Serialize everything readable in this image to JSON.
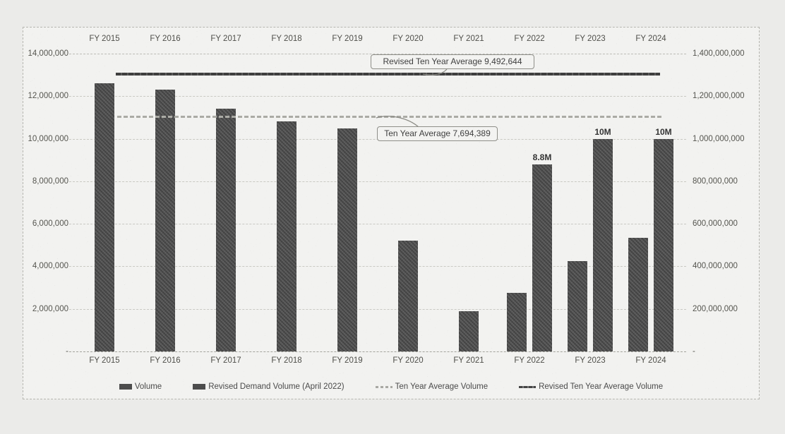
{
  "chart_data": {
    "type": "bar",
    "title": "",
    "categories": [
      "FY 2015",
      "FY 2016",
      "FY 2017",
      "FY 2018",
      "FY 2019",
      "FY 2020",
      "FY 2021",
      "FY 2022",
      "FY 2023",
      "FY 2024"
    ],
    "series": [
      {
        "name": "Volume",
        "values": [
          12600000,
          12300000,
          11400000,
          10800000,
          10500000,
          5200000,
          1900000,
          2750000,
          4250000,
          5350000
        ]
      },
      {
        "name": "Revised Demand Volume (April 2022)",
        "values": [
          null,
          null,
          null,
          null,
          null,
          null,
          null,
          8800000,
          10000000,
          10000000
        ],
        "data_labels": [
          null,
          null,
          null,
          null,
          null,
          null,
          null,
          "8.8M",
          "10M",
          "10M"
        ]
      }
    ],
    "average_lines": [
      {
        "name": "Revised Ten Year Average Volume",
        "callout": "Revised Ten Year Average 9,492,644",
        "value": 9492644,
        "plot_value": 13050000,
        "style": "dark"
      },
      {
        "name": "Ten Year Average Volume",
        "callout": "Ten Year Average 7,694,389",
        "value": 7694389,
        "plot_value": 11050000,
        "style": "light"
      }
    ],
    "left_axis": {
      "min": 0,
      "max": 14000000,
      "ticks": [
        "14,000,000",
        "12,000,000",
        "10,000,000",
        "8,000,000",
        "6,000,000",
        "4,000,000",
        "2,000,000",
        "-"
      ]
    },
    "right_axis": {
      "min": 0,
      "max": 1400000000,
      "ticks": [
        "1,400,000,000",
        "1,200,000,000",
        "1,000,000,000",
        "800,000,000",
        "600,000,000",
        "400,000,000",
        "200,000,000",
        "-"
      ]
    },
    "legend": [
      {
        "label": "Volume",
        "marker": "bar"
      },
      {
        "label": "Revised Demand Volume (April 2022)",
        "marker": "bar"
      },
      {
        "label": "Ten Year Average Volume",
        "marker": "line-light"
      },
      {
        "label": "Revised Ten Year Average Volume",
        "marker": "line-dark"
      }
    ],
    "grid": "horizontal-dashed",
    "legend_position": "bottom",
    "category_axis_position": "top-and-bottom",
    "colors": {
      "bar": "#4c4c4c",
      "dark_line": "#3f3f3f",
      "light_line": "#ababa5",
      "grid": "#c9c9c3",
      "text": "#4a4a4a",
      "background": "#f2f2f0"
    }
  }
}
